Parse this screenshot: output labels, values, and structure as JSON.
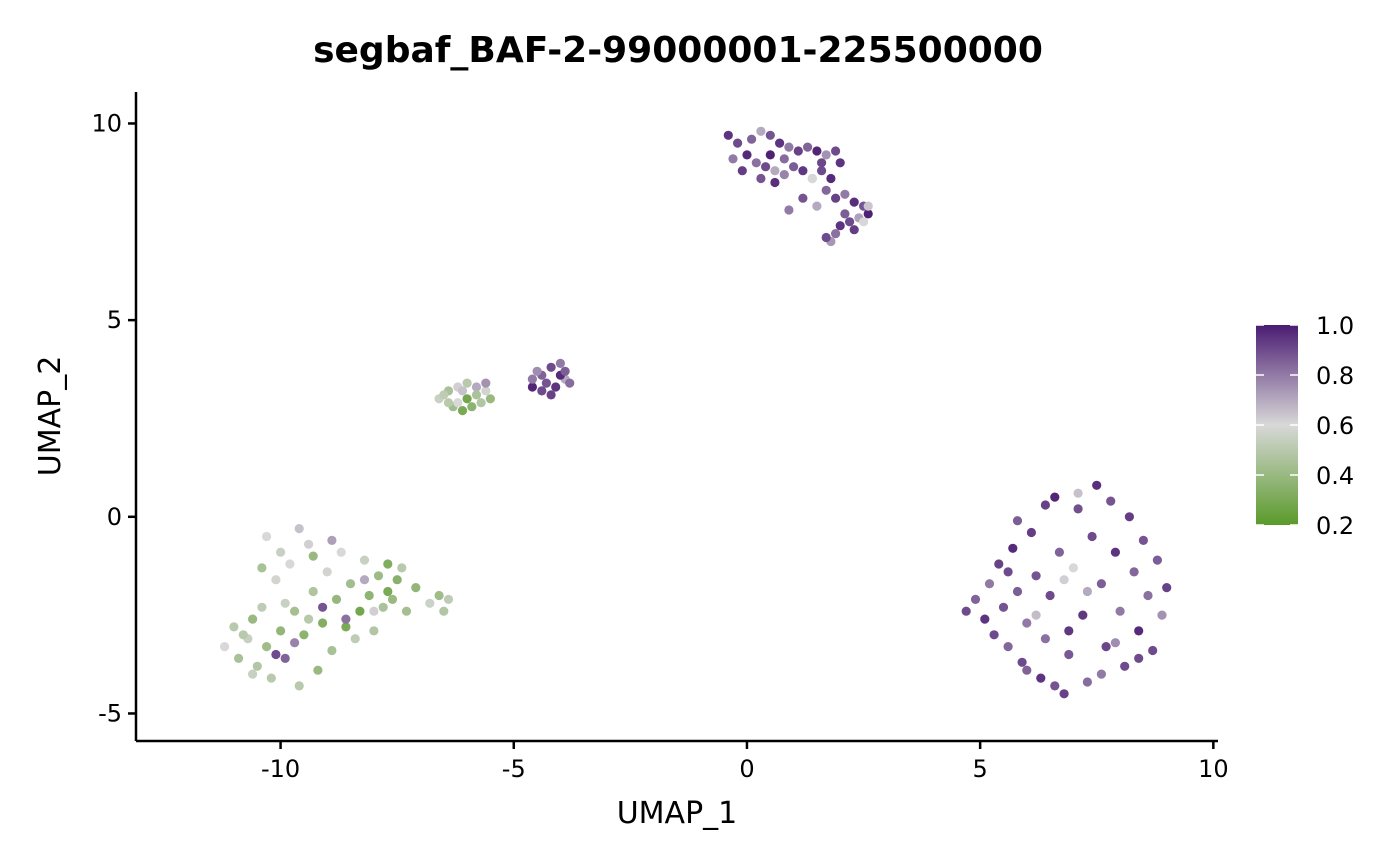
{
  "chart_data": {
    "type": "scatter",
    "title": "segbaf_BAF-2-99000001-225500000",
    "xlabel": "UMAP_1",
    "ylabel": "UMAP_2",
    "xlim": [
      -13.1,
      10.1
    ],
    "ylim": [
      -5.7,
      10.8
    ],
    "x_ticks": [
      -10,
      -5,
      0,
      5,
      10
    ],
    "x_tick_labels": [
      "-10",
      "-5",
      "0",
      "5",
      "10"
    ],
    "y_ticks": [
      -5,
      0,
      5,
      10
    ],
    "y_tick_labels": [
      "-5",
      "0",
      "5",
      "10"
    ],
    "grid": false,
    "color_scale": {
      "name": "",
      "min": 0.2,
      "max": 1.0,
      "low_color": "#5a9a2a",
      "mid_color": "#d8d8d8",
      "high_color": "#4b1c72",
      "ticks": [
        0.2,
        0.4,
        0.6,
        0.8,
        1.0
      ],
      "tick_labels": [
        "0.2",
        "0.4",
        "0.6",
        "0.8",
        "1.0"
      ],
      "legend_position": "right"
    },
    "clusters": [
      {
        "center": [
          1.8,
          8.7
        ],
        "value_range": [
          0.6,
          1.0
        ],
        "points": [
          [
            -0.4,
            9.7,
            0.95
          ],
          [
            -0.2,
            9.5,
            0.9
          ],
          [
            0.1,
            9.6,
            0.85
          ],
          [
            0.3,
            9.8,
            0.7
          ],
          [
            0.5,
            9.7,
            0.88
          ],
          [
            0.7,
            9.5,
            0.95
          ],
          [
            0.9,
            9.4,
            0.8
          ],
          [
            1.1,
            9.3,
            0.92
          ],
          [
            1.3,
            9.4,
            0.85
          ],
          [
            1.5,
            9.3,
            0.98
          ],
          [
            1.7,
            9.2,
            0.75
          ],
          [
            1.9,
            9.3,
            0.9
          ],
          [
            2.0,
            9.0,
            0.95
          ],
          [
            -0.3,
            9.1,
            0.8
          ],
          [
            0.0,
            9.2,
            0.97
          ],
          [
            0.2,
            9.0,
            0.82
          ],
          [
            0.4,
            8.9,
            0.9
          ],
          [
            0.6,
            8.8,
            0.7
          ],
          [
            -0.1,
            8.8,
            0.93
          ],
          [
            0.3,
            8.6,
            0.88
          ],
          [
            0.6,
            8.5,
            0.96
          ],
          [
            0.8,
            8.7,
            0.78
          ],
          [
            1.0,
            8.9,
            0.86
          ],
          [
            1.2,
            8.8,
            0.94
          ],
          [
            1.4,
            8.6,
            0.68
          ],
          [
            1.6,
            8.8,
            0.9
          ],
          [
            1.8,
            8.6,
            0.97
          ],
          [
            1.7,
            8.3,
            0.84
          ],
          [
            1.9,
            8.1,
            0.92
          ],
          [
            2.1,
            8.2,
            0.8
          ],
          [
            2.3,
            8.0,
            0.96
          ],
          [
            2.5,
            7.9,
            0.88
          ],
          [
            2.6,
            7.7,
            0.99
          ],
          [
            2.4,
            7.6,
            0.72
          ],
          [
            2.2,
            7.5,
            0.9
          ],
          [
            2.0,
            7.4,
            0.95
          ],
          [
            1.9,
            7.2,
            0.82
          ],
          [
            1.8,
            7.0,
            0.74
          ],
          [
            1.7,
            7.1,
            0.9
          ],
          [
            2.1,
            7.7,
            0.86
          ],
          [
            2.3,
            7.3,
            0.93
          ],
          [
            2.5,
            7.5,
            0.6
          ],
          [
            2.6,
            7.9,
            0.64
          ],
          [
            1.5,
            7.9,
            0.7
          ],
          [
            1.2,
            8.1,
            0.88
          ],
          [
            0.9,
            7.8,
            0.8
          ],
          [
            1.4,
            8.6,
            0.6
          ],
          [
            0.5,
            9.2,
            0.99
          ],
          [
            0.8,
            9.1,
            0.83
          ],
          [
            1.6,
            9.0,
            0.91
          ]
        ]
      },
      {
        "center": [
          -4.3,
          3.5
        ],
        "value_range": [
          0.7,
          1.0
        ],
        "points": [
          [
            -4.6,
            3.3,
            0.98
          ],
          [
            -4.4,
            3.6,
            0.85
          ],
          [
            -4.2,
            3.8,
            0.9
          ],
          [
            -4.0,
            3.9,
            0.8
          ],
          [
            -3.9,
            3.5,
            0.7
          ],
          [
            -4.1,
            3.3,
            0.95
          ],
          [
            -4.3,
            3.4,
            0.88
          ],
          [
            -4.5,
            3.7,
            0.76
          ],
          [
            -4.2,
            3.1,
            0.92
          ],
          [
            -3.8,
            3.4,
            0.83
          ],
          [
            -4.0,
            3.6,
            0.97
          ],
          [
            -4.4,
            3.2,
            0.9
          ],
          [
            -4.6,
            3.5,
            0.8
          ],
          [
            -3.9,
            3.7,
            0.86
          ]
        ]
      },
      {
        "center": [
          -6.1,
          3.1
        ],
        "value_range": [
          0.25,
          0.75
        ],
        "points": [
          [
            -6.6,
            3.0,
            0.55
          ],
          [
            -6.4,
            3.2,
            0.45
          ],
          [
            -6.2,
            3.3,
            0.62
          ],
          [
            -6.0,
            3.4,
            0.5
          ],
          [
            -5.8,
            3.3,
            0.7
          ],
          [
            -5.6,
            3.2,
            0.58
          ],
          [
            -5.5,
            3.0,
            0.4
          ],
          [
            -5.7,
            2.9,
            0.48
          ],
          [
            -5.9,
            2.8,
            0.36
          ],
          [
            -6.1,
            2.7,
            0.3
          ],
          [
            -6.3,
            2.8,
            0.42
          ],
          [
            -6.5,
            3.1,
            0.52
          ],
          [
            -6.0,
            3.0,
            0.28
          ],
          [
            -6.2,
            2.9,
            0.6
          ],
          [
            -5.8,
            3.1,
            0.46
          ],
          [
            -6.4,
            2.9,
            0.5
          ],
          [
            -5.6,
            3.4,
            0.75
          ],
          [
            -6.1,
            3.2,
            0.65
          ]
        ]
      },
      {
        "center": [
          -9.1,
          -2.5
        ],
        "value_range": [
          0.25,
          0.9
        ],
        "points": [
          [
            -11.2,
            -3.3,
            0.6
          ],
          [
            -11.0,
            -2.8,
            0.5
          ],
          [
            -10.9,
            -3.6,
            0.45
          ],
          [
            -10.7,
            -3.1,
            0.55
          ],
          [
            -10.6,
            -2.6,
            0.4
          ],
          [
            -10.5,
            -3.8,
            0.48
          ],
          [
            -10.4,
            -2.3,
            0.52
          ],
          [
            -10.3,
            -3.3,
            0.42
          ],
          [
            -10.2,
            -4.1,
            0.5
          ],
          [
            -10.1,
            -1.6,
            0.58
          ],
          [
            -10.0,
            -2.9,
            0.38
          ],
          [
            -10.0,
            -0.9,
            0.55
          ],
          [
            -9.9,
            -3.6,
            0.85
          ],
          [
            -9.8,
            -1.2,
            0.6
          ],
          [
            -9.7,
            -2.4,
            0.44
          ],
          [
            -9.6,
            -4.3,
            0.5
          ],
          [
            -9.5,
            -3.0,
            0.36
          ],
          [
            -9.4,
            -0.7,
            0.62
          ],
          [
            -9.3,
            -1.9,
            0.47
          ],
          [
            -9.2,
            -3.9,
            0.4
          ],
          [
            -9.1,
            -2.7,
            0.33
          ],
          [
            -9.0,
            -1.4,
            0.58
          ],
          [
            -8.9,
            -3.4,
            0.45
          ],
          [
            -8.8,
            -2.1,
            0.39
          ],
          [
            -8.7,
            -0.9,
            0.6
          ],
          [
            -8.6,
            -2.8,
            0.3
          ],
          [
            -8.5,
            -1.7,
            0.43
          ],
          [
            -8.4,
            -3.1,
            0.52
          ],
          [
            -8.3,
            -2.4,
            0.28
          ],
          [
            -8.2,
            -1.1,
            0.55
          ],
          [
            -8.1,
            -2.0,
            0.37
          ],
          [
            -8.0,
            -2.9,
            0.48
          ],
          [
            -7.9,
            -1.5,
            0.41
          ],
          [
            -7.8,
            -2.3,
            0.46
          ],
          [
            -7.7,
            -1.2,
            0.32
          ],
          [
            -7.6,
            -2.1,
            0.4
          ],
          [
            -7.5,
            -1.6,
            0.35
          ],
          [
            -7.4,
            -1.3,
            0.5
          ],
          [
            -7.3,
            -2.4,
            0.44
          ],
          [
            -7.1,
            -1.8,
            0.38
          ],
          [
            -6.8,
            -2.2,
            0.56
          ],
          [
            -6.6,
            -2.0,
            0.42
          ],
          [
            -6.5,
            -2.4,
            0.48
          ],
          [
            -6.4,
            -2.1,
            0.52
          ],
          [
            -10.8,
            -3.0,
            0.5
          ],
          [
            -10.3,
            -0.5,
            0.6
          ],
          [
            -9.6,
            -0.3,
            0.65
          ],
          [
            -9.3,
            -1.0,
            0.4
          ],
          [
            -8.9,
            -0.6,
            0.72
          ],
          [
            -8.6,
            -2.6,
            0.82
          ],
          [
            -9.1,
            -2.3,
            0.88
          ],
          [
            -10.1,
            -3.5,
            0.9
          ],
          [
            -9.7,
            -3.2,
            0.78
          ],
          [
            -8.2,
            -1.6,
            0.7
          ],
          [
            -10.4,
            -1.3,
            0.45
          ],
          [
            -9.9,
            -2.2,
            0.55
          ],
          [
            -8.0,
            -2.4,
            0.62
          ],
          [
            -7.7,
            -1.9,
            0.3
          ],
          [
            -9.4,
            -2.6,
            0.5
          ],
          [
            -10.6,
            -4.0,
            0.55
          ]
        ]
      },
      {
        "center": [
          6.8,
          -2.2
        ],
        "value_range": [
          0.6,
          1.0
        ],
        "points": [
          [
            4.7,
            -2.4,
            0.9
          ],
          [
            4.9,
            -2.1,
            0.85
          ],
          [
            5.1,
            -2.6,
            0.95
          ],
          [
            5.2,
            -1.7,
            0.8
          ],
          [
            5.4,
            -1.2,
            0.92
          ],
          [
            5.5,
            -2.3,
            0.88
          ],
          [
            5.6,
            -3.3,
            0.84
          ],
          [
            5.7,
            -0.8,
            0.97
          ],
          [
            5.8,
            -1.9,
            0.86
          ],
          [
            5.9,
            -3.7,
            0.9
          ],
          [
            6.0,
            -2.7,
            0.8
          ],
          [
            6.1,
            -0.4,
            0.93
          ],
          [
            6.2,
            -1.5,
            0.88
          ],
          [
            6.3,
            -4.1,
            0.95
          ],
          [
            6.4,
            -3.1,
            0.82
          ],
          [
            6.5,
            -2.0,
            0.9
          ],
          [
            6.6,
            0.5,
            0.98
          ],
          [
            6.7,
            -0.9,
            0.85
          ],
          [
            6.8,
            -4.5,
            0.92
          ],
          [
            6.9,
            -3.5,
            0.87
          ],
          [
            7.0,
            -1.3,
            0.6
          ],
          [
            7.1,
            0.2,
            0.89
          ],
          [
            7.2,
            -2.5,
            0.94
          ],
          [
            7.3,
            -4.2,
            0.83
          ],
          [
            7.4,
            -0.5,
            0.9
          ],
          [
            7.5,
            0.8,
            0.96
          ],
          [
            7.6,
            -1.7,
            0.86
          ],
          [
            7.7,
            -3.3,
            0.91
          ],
          [
            7.8,
            0.4,
            0.88
          ],
          [
            7.9,
            -0.9,
            0.95
          ],
          [
            8.0,
            -2.4,
            0.8
          ],
          [
            8.1,
            -3.8,
            0.9
          ],
          [
            8.2,
            0.0,
            0.93
          ],
          [
            8.3,
            -1.4,
            0.84
          ],
          [
            8.4,
            -2.9,
            0.97
          ],
          [
            8.5,
            -0.6,
            0.88
          ],
          [
            8.6,
            -2.0,
            0.82
          ],
          [
            8.7,
            -3.4,
            0.9
          ],
          [
            8.8,
            -1.1,
            0.86
          ],
          [
            8.9,
            -2.5,
            0.75
          ],
          [
            9.0,
            -1.8,
            0.92
          ],
          [
            6.2,
            -2.5,
            0.66
          ],
          [
            6.8,
            -1.6,
            0.62
          ],
          [
            7.3,
            -1.9,
            0.7
          ],
          [
            5.3,
            -3.0,
            0.9
          ],
          [
            6.0,
            -3.9,
            0.85
          ],
          [
            6.6,
            -4.3,
            0.88
          ],
          [
            7.6,
            -4.0,
            0.8
          ],
          [
            7.1,
            0.6,
            0.65
          ],
          [
            6.4,
            0.3,
            0.92
          ],
          [
            5.8,
            -0.1,
            0.86
          ],
          [
            8.4,
            -3.6,
            0.9
          ],
          [
            7.9,
            -3.2,
            0.76
          ],
          [
            6.9,
            -2.9,
            0.94
          ],
          [
            5.6,
            -1.4,
            0.9
          ]
        ]
      }
    ]
  }
}
